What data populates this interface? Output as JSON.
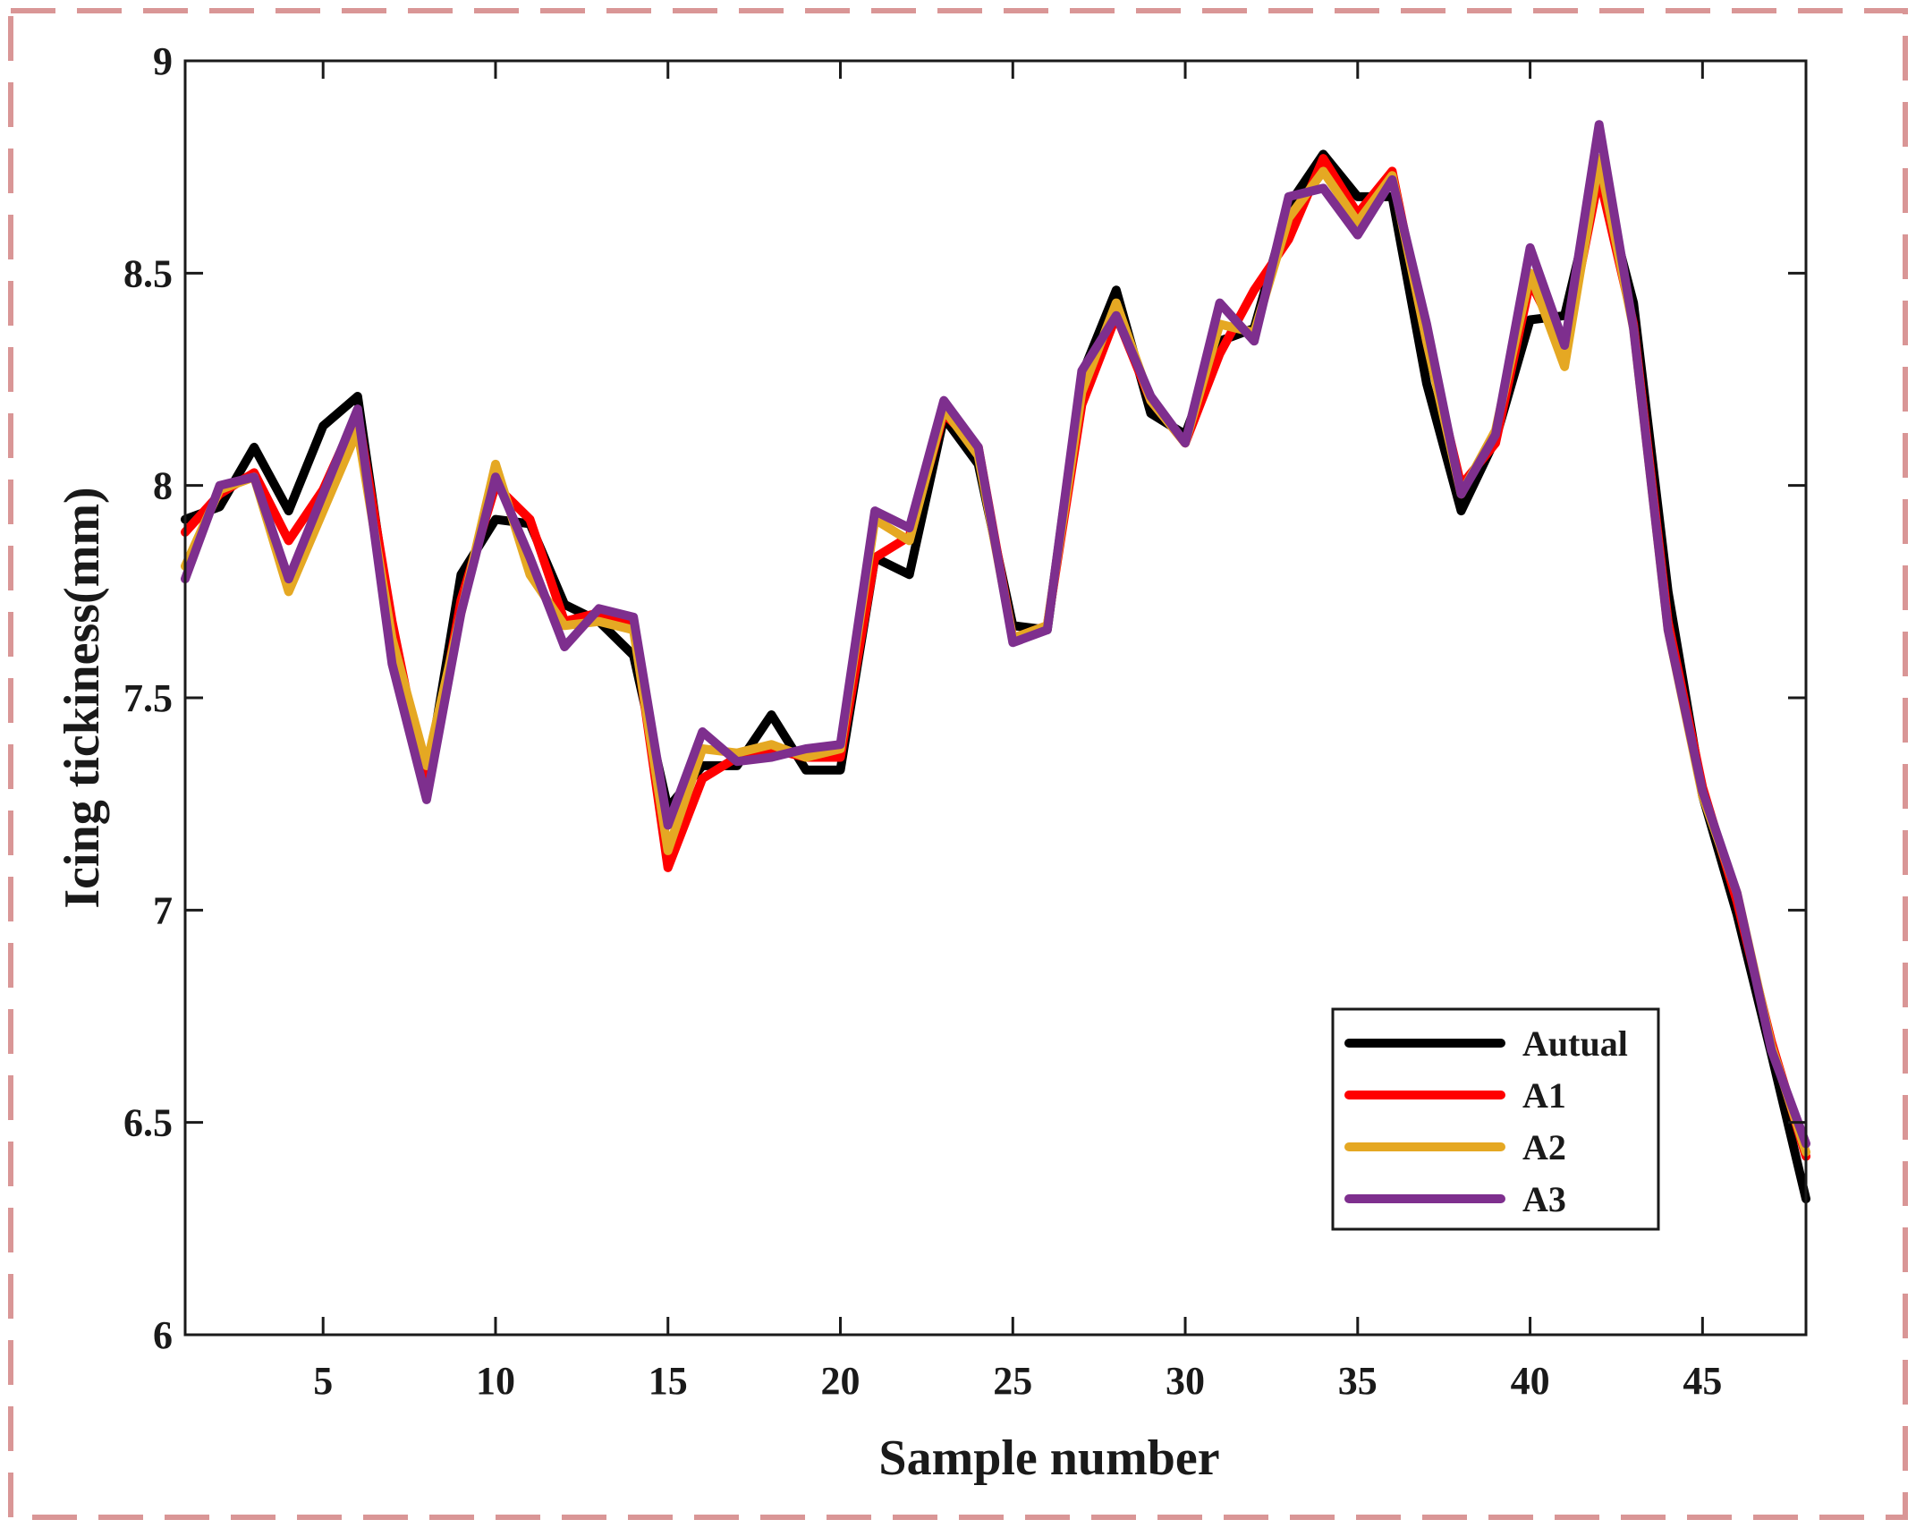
{
  "chart_data": {
    "type": "line",
    "xlabel": "Sample number",
    "ylabel": "Icing tickiness(mm)",
    "xlim": [
      1,
      48
    ],
    "ylim": [
      6,
      9
    ],
    "xticks": [
      5,
      10,
      15,
      20,
      25,
      30,
      35,
      40,
      45
    ],
    "yticks": [
      6,
      6.5,
      7,
      7.5,
      8,
      8.5,
      9
    ],
    "ytick_labels": [
      "6",
      "6.5",
      "7",
      "7.5",
      "8",
      "8.5",
      "9"
    ],
    "grid": false,
    "legend_position": "bottom-right",
    "x": [
      1,
      2,
      3,
      4,
      5,
      6,
      7,
      8,
      9,
      10,
      11,
      12,
      13,
      14,
      15,
      16,
      17,
      18,
      19,
      20,
      21,
      22,
      23,
      24,
      25,
      26,
      27,
      28,
      29,
      30,
      31,
      32,
      33,
      34,
      35,
      36,
      37,
      38,
      39,
      40,
      41,
      42,
      43,
      44,
      45,
      46,
      47,
      48
    ],
    "series": [
      {
        "name": "Autual",
        "color": "#000000",
        "values": [
          7.92,
          7.95,
          8.09,
          7.94,
          8.14,
          8.21,
          7.65,
          7.3,
          7.79,
          7.92,
          7.91,
          7.72,
          7.68,
          7.6,
          7.24,
          7.34,
          7.34,
          7.46,
          7.33,
          7.33,
          7.83,
          7.79,
          8.16,
          8.05,
          7.67,
          7.66,
          8.26,
          8.46,
          8.17,
          8.12,
          8.34,
          8.37,
          8.66,
          8.78,
          8.68,
          8.68,
          8.24,
          7.94,
          8.11,
          8.39,
          8.4,
          8.74,
          8.43,
          7.75,
          7.27,
          6.99,
          6.66,
          6.32
        ]
      },
      {
        "name": "A1",
        "color": "#ff0000",
        "values": [
          7.89,
          7.98,
          8.03,
          7.87,
          7.99,
          8.17,
          7.68,
          7.28,
          7.73,
          8.0,
          7.92,
          7.68,
          7.7,
          7.67,
          7.1,
          7.31,
          7.36,
          7.38,
          7.36,
          7.36,
          7.83,
          7.88,
          8.17,
          8.09,
          7.64,
          7.67,
          8.19,
          8.4,
          8.2,
          8.1,
          8.31,
          8.46,
          8.58,
          8.77,
          8.64,
          8.74,
          8.34,
          8.0,
          8.1,
          8.48,
          8.32,
          8.73,
          8.38,
          7.68,
          7.29,
          7.02,
          6.69,
          6.42
        ]
      },
      {
        "name": "A2",
        "color": "#e5a823",
        "values": [
          7.81,
          7.99,
          8.02,
          7.75,
          7.94,
          8.13,
          7.64,
          7.34,
          7.7,
          8.05,
          7.79,
          7.67,
          7.68,
          7.66,
          7.14,
          7.38,
          7.37,
          7.39,
          7.36,
          7.38,
          7.92,
          7.87,
          8.18,
          8.07,
          7.64,
          7.67,
          8.22,
          8.43,
          8.2,
          8.1,
          8.38,
          8.36,
          8.63,
          8.74,
          8.62,
          8.73,
          8.34,
          7.98,
          8.13,
          8.5,
          8.28,
          8.77,
          8.37,
          7.66,
          7.27,
          7.04,
          6.68,
          6.43
        ]
      },
      {
        "name": "A3",
        "color": "#7e2f8e",
        "values": [
          7.78,
          8.0,
          8.02,
          7.78,
          7.98,
          8.18,
          7.58,
          7.26,
          7.7,
          8.02,
          7.83,
          7.62,
          7.71,
          7.69,
          7.2,
          7.42,
          7.35,
          7.36,
          7.38,
          7.39,
          7.94,
          7.9,
          8.2,
          8.09,
          7.63,
          7.66,
          8.27,
          8.4,
          8.21,
          8.1,
          8.43,
          8.34,
          8.68,
          8.7,
          8.59,
          8.72,
          8.38,
          7.98,
          8.12,
          8.56,
          8.33,
          8.85,
          8.37,
          7.66,
          7.28,
          7.04,
          6.67,
          6.45
        ]
      }
    ]
  },
  "colors": {
    "frame_border": "#d99696",
    "axes": "#1a1a1a",
    "background": "#ffffff"
  }
}
